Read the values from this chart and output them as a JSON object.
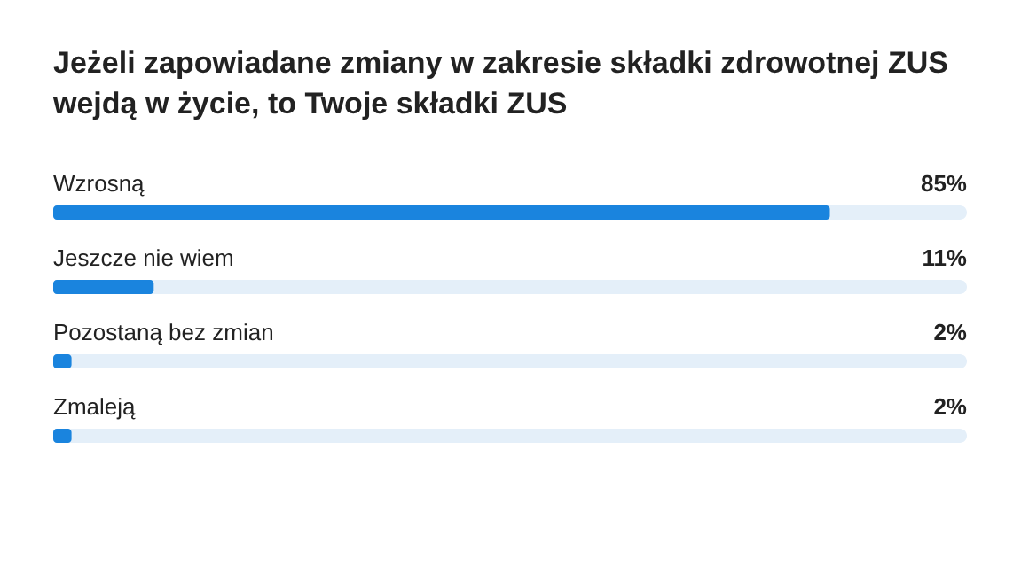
{
  "chart_data": {
    "type": "bar",
    "orientation": "horizontal",
    "title": "Jeżeli zapowiadane zmiany w zakresie składki zdrowotnej ZUS\nwejdą w życie, to Twoje składki ZUS",
    "categories": [
      "Wzrosną",
      "Jeszcze nie wiem",
      "Pozostaną bez zmian",
      "Zmaleją"
    ],
    "values": [
      85,
      11,
      2,
      2
    ],
    "color": "#1a84de",
    "xlim": [
      0,
      100
    ],
    "data_labels": true,
    "value_labels": [
      "85%",
      "11%",
      "2%",
      "2%"
    ]
  }
}
